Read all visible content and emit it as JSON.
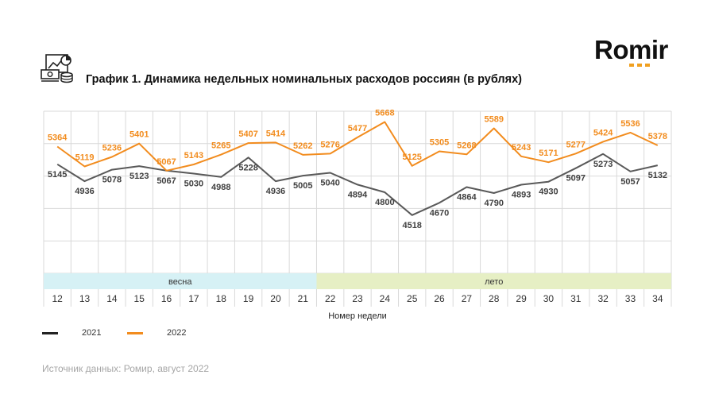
{
  "header": {
    "title": "График 1. Динамика недельных номинальных расходов россиян (в рублях)",
    "icon": "finance-report-icon"
  },
  "logo": {
    "text": "Romir",
    "accent_color": "#f0a020"
  },
  "source_text": "Источник данных: Ромир, август 2022",
  "colors": {
    "series_2021": "#595959",
    "series_2022": "#f28c1e",
    "label_2021": "#404040",
    "label_2022": "#f28c1e",
    "season_spring": "#d6f1f5",
    "season_summer": "#e6efc4",
    "grid": "#d9d9d9"
  },
  "chart_data": {
    "type": "line",
    "title": "График 1. Динамика недельных номинальных расходов россиян (в рублях)",
    "xlabel": "Номер недели",
    "ylabel": "",
    "x": [
      12,
      13,
      14,
      15,
      16,
      17,
      18,
      19,
      20,
      21,
      22,
      23,
      24,
      25,
      26,
      27,
      28,
      29,
      30,
      31,
      32,
      33,
      34
    ],
    "series": [
      {
        "name": "2021",
        "values": [
          5145,
          4936,
          5078,
          5123,
          5067,
          5030,
          4988,
          5228,
          4936,
          5005,
          5040,
          4894,
          4800,
          4518,
          4670,
          4864,
          4790,
          4893,
          4930,
          5097,
          5273,
          5057,
          5132
        ]
      },
      {
        "name": "2022",
        "values": [
          5364,
          5119,
          5236,
          5401,
          5067,
          5143,
          5265,
          5407,
          5414,
          5262,
          5276,
          5477,
          5668,
          5125,
          5305,
          5268,
          5589,
          5243,
          5171,
          5277,
          5424,
          5536,
          5378
        ]
      }
    ],
    "seasons": [
      {
        "label": "весна",
        "from": 12,
        "to": 21
      },
      {
        "label": "лето",
        "from": 22,
        "to": 34
      }
    ],
    "ylim": [
      3800,
      5800
    ],
    "grid": true,
    "legend": "bottom-left"
  }
}
